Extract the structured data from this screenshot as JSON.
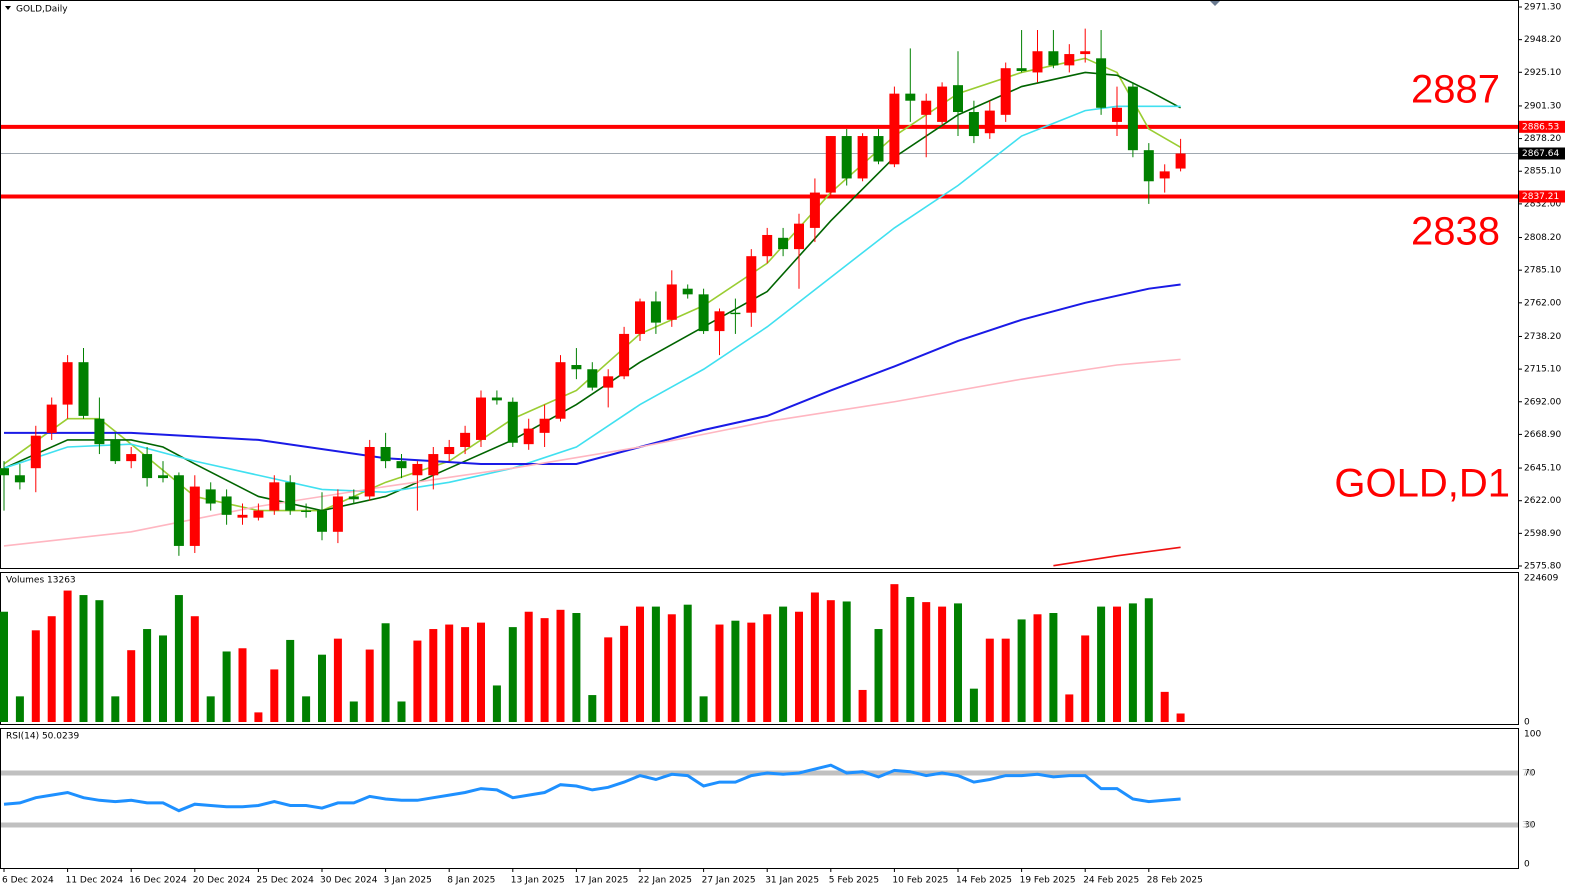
{
  "chart_data": [
    {
      "type": "candlestick",
      "title": "GOLD,Daily",
      "categories": [
        "6 Dec 2024",
        null,
        null,
        null,
        "11 Dec 2024",
        null,
        null,
        null,
        "16 Dec 2024",
        null,
        null,
        null,
        "20 Dec 2024",
        null,
        null,
        null,
        "25 Dec 2024",
        null,
        null,
        null,
        "30 Dec 2024",
        null,
        null,
        null,
        "3 Jan 2025",
        null,
        null,
        null,
        "8 Jan 2025",
        null,
        null,
        null,
        "13 Jan 2025",
        null,
        null,
        null,
        "17 Jan 2025",
        null,
        null,
        null,
        "22 Jan 2025",
        null,
        null,
        null,
        "27 Jan 2025",
        null,
        null,
        null,
        "31 Jan 2025",
        null,
        null,
        null,
        "5 Feb 2025",
        null,
        null,
        null,
        "10 Feb 2025",
        null,
        null,
        null,
        "14 Feb 2025",
        null,
        null,
        null,
        "19 Feb 2025",
        null,
        null,
        null,
        "24 Feb 2025",
        null,
        null,
        null,
        "28 Feb 2025",
        null,
        null
      ],
      "open": [
        2645,
        2640,
        2645,
        2670,
        2690,
        2720,
        2680,
        2665,
        2650,
        2655,
        2640,
        2640,
        2590,
        2630,
        2625,
        2610,
        2610,
        2615,
        2635,
        2615,
        2615,
        2600,
        2625,
        2625,
        2660,
        2650,
        2640,
        2640,
        2655,
        2660,
        2665,
        2695,
        2692,
        2662,
        2670,
        2680,
        2718,
        2715,
        2702,
        2710,
        2740,
        2763,
        2750,
        2772,
        2768,
        2742,
        2755,
        2755,
        2795,
        2808,
        2800,
        2815,
        2840,
        2880,
        2850,
        2880,
        2860,
        2910,
        2895,
        2890,
        2916,
        2897,
        2882,
        2895,
        2928,
        2925,
        2940,
        2930,
        2938,
        2935,
        2890,
        2915,
        2870,
        2850,
        2857
      ],
      "high": [
        2650,
        2648,
        2675,
        2695,
        2725,
        2730,
        2695,
        2670,
        2660,
        2660,
        2650,
        2642,
        2640,
        2635,
        2630,
        2620,
        2620,
        2640,
        2640,
        2620,
        2628,
        2630,
        2630,
        2665,
        2670,
        2655,
        2650,
        2660,
        2665,
        2675,
        2700,
        2700,
        2695,
        2680,
        2690,
        2725,
        2730,
        2720,
        2715,
        2745,
        2765,
        2770,
        2785,
        2775,
        2772,
        2758,
        2765,
        2800,
        2815,
        2815,
        2825,
        2850,
        2880,
        2885,
        2882,
        2885,
        2915,
        2942,
        2910,
        2918,
        2940,
        2905,
        2905,
        2932,
        2955,
        2955,
        2955,
        2945,
        2956,
        2955,
        2915,
        2918,
        2875,
        2860,
        2878
      ],
      "low": [
        2615,
        2630,
        2628,
        2665,
        2680,
        2680,
        2655,
        2648,
        2645,
        2632,
        2635,
        2583,
        2585,
        2615,
        2605,
        2605,
        2608,
        2612,
        2612,
        2610,
        2594,
        2592,
        2620,
        2622,
        2645,
        2638,
        2615,
        2630,
        2650,
        2655,
        2660,
        2690,
        2660,
        2658,
        2660,
        2678,
        2708,
        2700,
        2688,
        2708,
        2735,
        2740,
        2745,
        2765,
        2740,
        2725,
        2740,
        2745,
        2790,
        2795,
        2772,
        2805,
        2838,
        2845,
        2848,
        2860,
        2858,
        2890,
        2865,
        2888,
        2880,
        2875,
        2878,
        2890,
        2925,
        2918,
        2928,
        2925,
        2932,
        2895,
        2880,
        2865,
        2832,
        2840,
        2855
      ],
      "close": [
        2640,
        2635,
        2668,
        2690,
        2720,
        2682,
        2662,
        2650,
        2655,
        2638,
        2638,
        2590,
        2632,
        2620,
        2612,
        2612,
        2615,
        2635,
        2615,
        2614,
        2600,
        2625,
        2623,
        2660,
        2650,
        2645,
        2648,
        2655,
        2660,
        2670,
        2695,
        2693,
        2663,
        2673,
        2680,
        2720,
        2715,
        2702,
        2710,
        2740,
        2763,
        2748,
        2775,
        2768,
        2742,
        2756,
        2754,
        2795,
        2810,
        2800,
        2818,
        2840,
        2880,
        2850,
        2880,
        2862,
        2910,
        2905,
        2905,
        2915,
        2897,
        2880,
        2898,
        2928,
        2926,
        2940,
        2930,
        2938,
        2940,
        2900,
        2900,
        2870,
        2848,
        2855,
        2867.64
      ],
      "up_color": "#ff0000",
      "down_color": "#008000",
      "ylim": [
        2575.8,
        2971.3
      ],
      "yticks": [
        {
          "value": 2971.3,
          "label": "2971.30"
        },
        {
          "value": 2948.2,
          "label": "2948.20"
        },
        {
          "value": 2925.1,
          "label": "2925.10"
        },
        {
          "value": 2901.3,
          "label": "2901.30"
        },
        {
          "value": 2878.2,
          "label": "2878.20"
        },
        {
          "value": 2855.1,
          "label": "2855.10"
        },
        {
          "value": 2832,
          "label": "2832.00"
        },
        {
          "value": 2808.2,
          "label": "2808.20"
        },
        {
          "value": 2785.1,
          "label": "2785.10"
        },
        {
          "value": 2762,
          "label": "2762.00"
        },
        {
          "value": 2738.2,
          "label": "2738.20"
        },
        {
          "value": 2715.1,
          "label": "2715.10"
        },
        {
          "value": 2692,
          "label": "2692.00"
        },
        {
          "value": 2668.9,
          "label": "2668.90"
        },
        {
          "value": 2645.1,
          "label": "2645.10"
        },
        {
          "value": 2622,
          "label": "2622.00"
        },
        {
          "value": 2598.9,
          "label": "2598.90"
        },
        {
          "value": 2575.8,
          "label": "2575.80"
        }
      ],
      "indicators": [
        {
          "color": "#9acd32",
          "x": [
            0,
            4,
            6,
            8,
            12,
            16,
            20,
            24,
            28,
            32,
            36,
            40,
            44,
            48,
            52,
            56,
            60,
            64,
            68,
            70,
            72,
            74
          ],
          "values": [
            2648,
            2680,
            2680,
            2662,
            2625,
            2615,
            2615,
            2635,
            2650,
            2680,
            2700,
            2740,
            2760,
            2790,
            2840,
            2880,
            2910,
            2925,
            2935,
            2925,
            2885,
            2872
          ]
        },
        {
          "color": "#006400",
          "x": [
            0,
            4,
            8,
            10,
            12,
            16,
            20,
            24,
            28,
            32,
            36,
            40,
            44,
            48,
            52,
            56,
            60,
            64,
            68,
            70,
            72,
            74
          ],
          "values": [
            2645,
            2665,
            2665,
            2660,
            2648,
            2625,
            2615,
            2625,
            2645,
            2665,
            2690,
            2720,
            2745,
            2770,
            2820,
            2865,
            2895,
            2915,
            2925,
            2923,
            2912,
            2900
          ]
        },
        {
          "color": "#40e0f0",
          "x": [
            0,
            4,
            8,
            12,
            16,
            20,
            24,
            28,
            32,
            36,
            40,
            44,
            48,
            52,
            56,
            60,
            64,
            68,
            70,
            72,
            74
          ],
          "values": [
            2645,
            2660,
            2662,
            2650,
            2640,
            2630,
            2628,
            2635,
            2645,
            2660,
            2690,
            2715,
            2745,
            2780,
            2815,
            2845,
            2880,
            2898,
            2901,
            2901,
            2901
          ]
        },
        {
          "color": "#1a1ae6",
          "x": [
            0,
            8,
            16,
            24,
            30,
            36,
            40,
            44,
            48,
            52,
            56,
            60,
            64,
            68,
            72,
            74
          ],
          "values": [
            2670,
            2670,
            2665,
            2652,
            2648,
            2648,
            2660,
            2672,
            2682,
            2700,
            2717,
            2735,
            2750,
            2762,
            2772,
            2775
          ]
        },
        {
          "color": "#ffb6c1",
          "x": [
            0,
            8,
            16,
            24,
            32,
            40,
            48,
            56,
            64,
            70,
            74
          ],
          "values": [
            2590,
            2600,
            2618,
            2632,
            2645,
            2660,
            2678,
            2692,
            2708,
            2718,
            2722
          ]
        },
        {
          "color": "#ee1111",
          "x": [
            66,
            70,
            74
          ],
          "values": [
            2576,
            2583,
            2589
          ]
        }
      ],
      "hlines": [
        {
          "value": 2886.53,
          "color": "#ff0000"
        },
        {
          "value": 2837.21,
          "color": "#ff0000"
        }
      ],
      "current_price": 2867.64,
      "annotations": [
        "2887",
        "2838",
        "GOLD,D1"
      ]
    },
    {
      "type": "bar",
      "title": "Volumes 13263",
      "ylim": [
        0,
        224609
      ],
      "yticks": [
        224609,
        0
      ],
      "values": [
        172000,
        40000,
        143000,
        165000,
        205000,
        198000,
        190000,
        40000,
        112000,
        145000,
        135000,
        198000,
        165000,
        40000,
        110000,
        115000,
        15000,
        82000,
        128000,
        40000,
        105000,
        130000,
        32000,
        113000,
        154000,
        32000,
        127000,
        145000,
        152000,
        148000,
        155000,
        57000,
        148000,
        172000,
        162000,
        175000,
        170000,
        42000,
        132000,
        150000,
        180000,
        180000,
        168000,
        183000,
        40000,
        152000,
        158000,
        155000,
        168000,
        180000,
        172000,
        202000,
        190000,
        188000,
        50000,
        145000,
        215000,
        195000,
        187000,
        180000,
        185000,
        52000,
        130000,
        130000,
        160000,
        168000,
        170000,
        43000,
        135000,
        180000,
        180000,
        185000,
        193000,
        47000,
        13263
      ]
    },
    {
      "type": "line",
      "title": "RSI(14) 50.0239",
      "color": "#1e90ff",
      "ylim": [
        0,
        100
      ],
      "yticks": [
        100,
        70,
        30,
        0
      ],
      "levels": [
        70,
        30
      ],
      "values": [
        46,
        47,
        51,
        53,
        55,
        51,
        49,
        48,
        49,
        47,
        47,
        41,
        46,
        45,
        44,
        44,
        45,
        48,
        45,
        45,
        43,
        47,
        47,
        52,
        50,
        49,
        49,
        51,
        53,
        55,
        58,
        57,
        51,
        53,
        55,
        61,
        60,
        57,
        59,
        63,
        68,
        65,
        69,
        68,
        60,
        63,
        63,
        68,
        70,
        69,
        70,
        73,
        76,
        70,
        71,
        67,
        72,
        71,
        68,
        70,
        68,
        63,
        65,
        68,
        68,
        69,
        67,
        68,
        68,
        58,
        58,
        50,
        48,
        49,
        50.0239
      ]
    }
  ]
}
